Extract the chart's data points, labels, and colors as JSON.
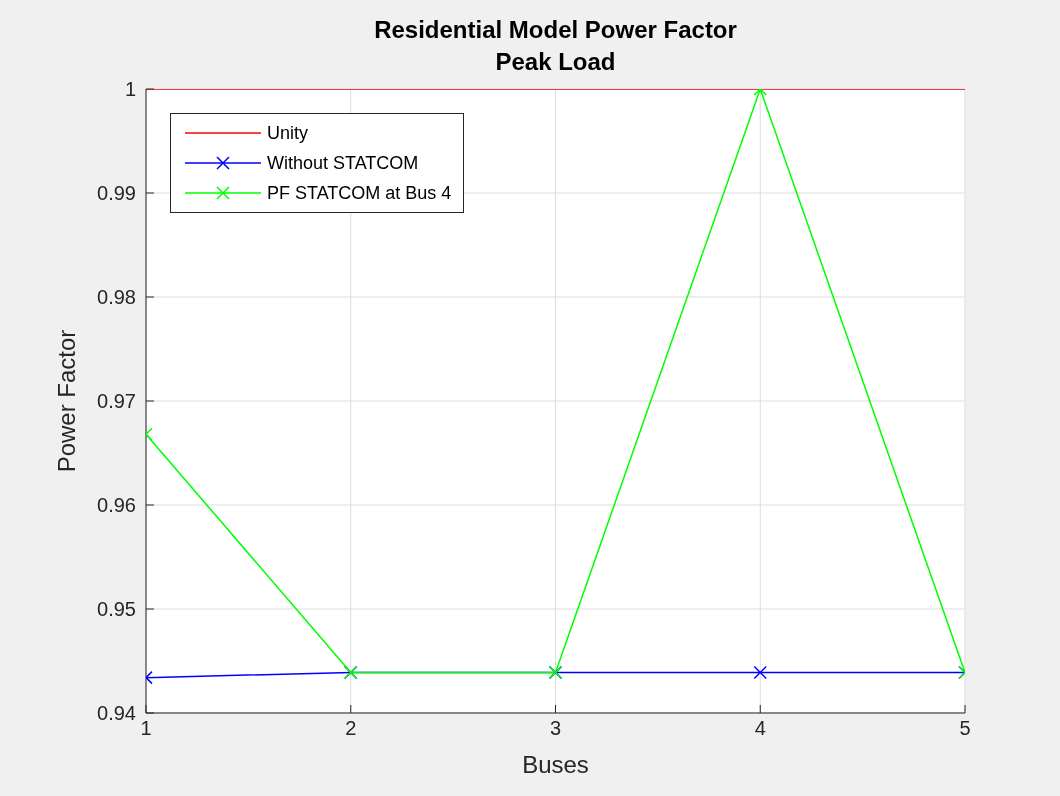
{
  "chart_data": {
    "type": "line",
    "title": "Residential Model Power Factor",
    "subtitle": "Peak Load",
    "xlabel": "Buses",
    "ylabel": "Power Factor",
    "x": [
      1,
      2,
      3,
      4,
      5
    ],
    "series": [
      {
        "name": "Unity",
        "color": "#ff0000",
        "values": [
          1,
          1,
          1,
          1,
          1
        ],
        "marker": "none"
      },
      {
        "name": "Without STATCOM",
        "color": "#0000ff",
        "values": [
          0.9434,
          0.9439,
          0.9439,
          0.9439,
          0.9439
        ],
        "marker": "cross"
      },
      {
        "name": "PF STATCOM at Bus 4",
        "color": "#00ff00",
        "values": [
          0.9668,
          0.9439,
          0.9439,
          1,
          0.9439
        ],
        "marker": "cross"
      }
    ],
    "xlim": [
      1,
      5
    ],
    "xticks": [
      1,
      2,
      3,
      4,
      5
    ],
    "ylim": [
      0.94,
      1
    ],
    "yticks": [
      0.94,
      0.95,
      0.96,
      0.97,
      0.98,
      0.99,
      1
    ],
    "grid": true,
    "legend": "top left",
    "line_style": "solid"
  }
}
